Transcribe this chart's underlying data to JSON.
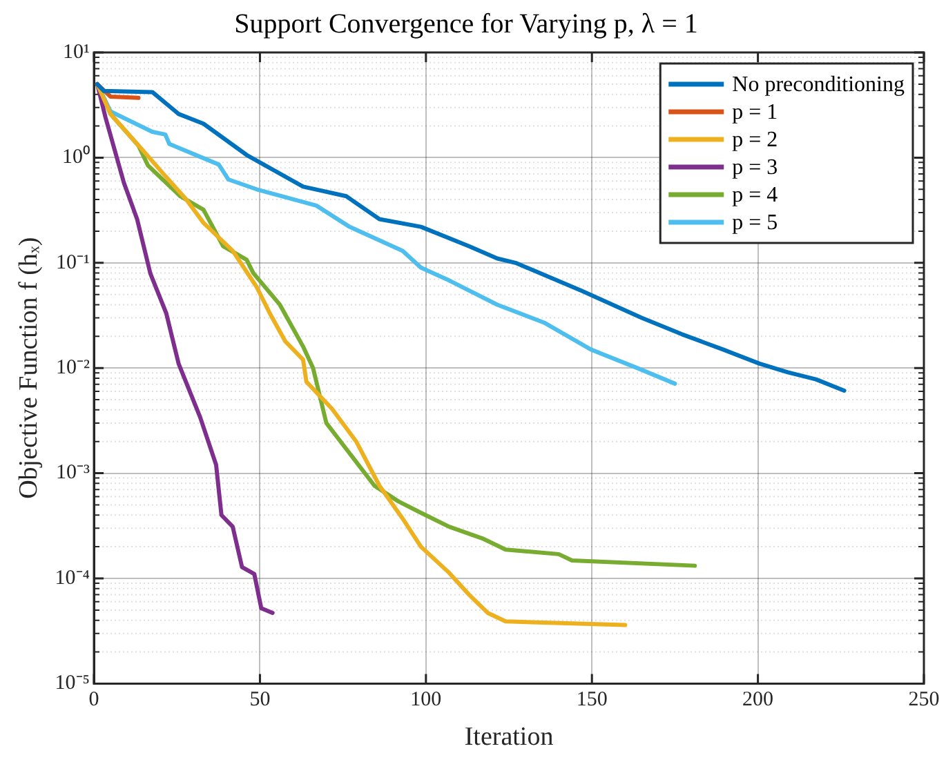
{
  "chart_data": {
    "type": "line",
    "title": "Support Convergence for Varying p, λ = 1",
    "xlabel": "Iteration",
    "ylabel": "Objective Function f (hₓ)",
    "xlim": [
      0,
      250
    ],
    "xticks": [
      0,
      50,
      100,
      150,
      200,
      250
    ],
    "ylim": [
      1e-05,
      10
    ],
    "yticks": [
      {
        "value": 1e-05,
        "label": "10⁻⁵"
      },
      {
        "value": 0.0001,
        "label": "10⁻⁴"
      },
      {
        "value": 0.001,
        "label": "10⁻³"
      },
      {
        "value": 0.01,
        "label": "10⁻²"
      },
      {
        "value": 0.1,
        "label": "10⁻¹"
      },
      {
        "value": 1,
        "label": "10⁰"
      },
      {
        "value": 10,
        "label": "10¹"
      }
    ],
    "log": "y",
    "grid": true,
    "legend": "top right",
    "marker": "none",
    "line_style": "solid",
    "series": [
      {
        "name": "No preconditioning",
        "color": "#0072bd",
        "x": [
          1,
          3,
          17.6,
          25.5,
          33,
          46,
          63,
          76,
          86,
          98.5,
          113,
          121.5,
          127,
          147,
          165,
          177,
          189.5,
          200.5,
          209,
          217.5,
          226
        ],
        "values": [
          5,
          4.3,
          4.2,
          2.6,
          2.1,
          1.06,
          0.53,
          0.43,
          0.26,
          0.22,
          0.144,
          0.11,
          0.1,
          0.054,
          0.03,
          0.021,
          0.015,
          0.011,
          0.0091,
          0.0078,
          0.0061
        ]
      },
      {
        "name": "p = 1",
        "color": "#d95319",
        "x": [
          1,
          5,
          13.4
        ],
        "values": [
          5,
          3.8,
          3.7
        ]
      },
      {
        "name": "p = 2",
        "color": "#edb120",
        "x": [
          1,
          5,
          15,
          20.6,
          27.8,
          33,
          41.8,
          49,
          53,
          57.6,
          63,
          64,
          71.7,
          79,
          86,
          93,
          98.5,
          107,
          113,
          118.6,
          124,
          160
        ],
        "values": [
          5,
          2.6,
          1.15,
          0.72,
          0.4,
          0.24,
          0.13,
          0.059,
          0.033,
          0.018,
          0.012,
          0.0074,
          0.0041,
          0.002,
          0.00076,
          0.00037,
          0.0002,
          0.000113,
          7e-05,
          4.7e-05,
          3.9e-05,
          3.6e-05
        ]
      },
      {
        "name": "p = 3",
        "color": "#7e2f8e",
        "x": [
          1,
          3.5,
          9,
          13,
          17,
          21.8,
          25.5,
          32,
          36.8,
          38.4,
          41.8,
          44.6,
          48.3,
          50.4,
          53.8
        ],
        "values": [
          5,
          2.4,
          0.58,
          0.26,
          0.079,
          0.033,
          0.011,
          0.0034,
          0.0012,
          0.0004,
          0.00031,
          0.000128,
          0.00011,
          5.2e-05,
          4.7e-05
        ]
      },
      {
        "name": "p = 4",
        "color": "#77ac30",
        "x": [
          1,
          5,
          13.4,
          16.3,
          26,
          33,
          38.9,
          46,
          48,
          56,
          63,
          66,
          70,
          76,
          84.5,
          91.7,
          98.5,
          107,
          117,
          124,
          140,
          144,
          181
        ],
        "values": [
          5,
          2.6,
          1.3,
          0.84,
          0.43,
          0.32,
          0.144,
          0.107,
          0.08,
          0.04,
          0.016,
          0.01,
          0.003,
          0.0017,
          0.00076,
          0.00054,
          0.00042,
          0.00031,
          0.00024,
          0.000188,
          0.00017,
          0.000148,
          0.000132
        ]
      },
      {
        "name": "p = 5",
        "color": "#4dbeee",
        "x": [
          1,
          5,
          17.6,
          21.5,
          22.7,
          37.6,
          40.5,
          49,
          67,
          77,
          93,
          98.5,
          107,
          121.5,
          135.6,
          149.7,
          164,
          175
        ],
        "values": [
          5,
          2.75,
          1.76,
          1.66,
          1.35,
          0.86,
          0.62,
          0.5,
          0.35,
          0.22,
          0.13,
          0.09,
          0.068,
          0.04,
          0.027,
          0.015,
          0.0099,
          0.0071
        ]
      }
    ]
  }
}
